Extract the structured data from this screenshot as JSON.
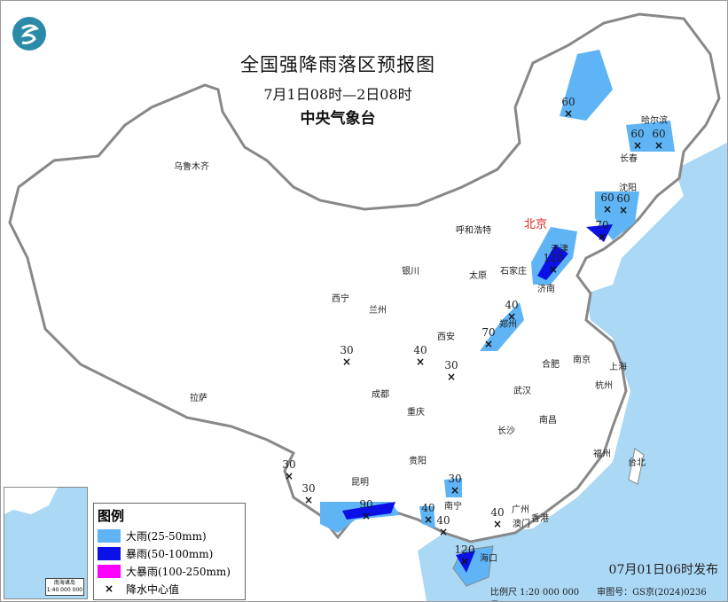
{
  "header": {
    "title": "全国强降雨落区预报图",
    "period": "7月1日08时—2日08时",
    "issuer": "中央气象台",
    "logo_icon": "cma-logo-icon"
  },
  "colors": {
    "heavy_rain": "#5fb4f5",
    "rainstorm": "#0a10e6",
    "heavy_rainstorm": "#ff00ff",
    "sea": "#aad8f5"
  },
  "legend": {
    "title": "图例",
    "items": [
      {
        "label": "大雨(25-50mm)",
        "color": "#5fb4f5"
      },
      {
        "label": "暴雨(50-100mm)",
        "color": "#0a10e6"
      },
      {
        "label": "大暴雨(100-250mm)",
        "color": "#ff00ff"
      },
      {
        "label": "降水中心值",
        "symbol": "×"
      }
    ]
  },
  "cities": [
    "乌鲁木齐",
    "哈尔滨",
    "长春",
    "沈阳",
    "北京",
    "天津",
    "呼和浩特",
    "石家庄",
    "太原",
    "济南",
    "银川",
    "西宁",
    "兰州",
    "郑州",
    "西安",
    "合肥",
    "南京",
    "上海",
    "杭州",
    "武汉",
    "成都",
    "重庆",
    "拉萨",
    "南昌",
    "长沙",
    "贵阳",
    "福州",
    "台北",
    "昆明",
    "南宁",
    "广州",
    "澳门",
    "香港",
    "海口"
  ],
  "rain_centers": [
    60,
    60,
    60,
    60,
    60,
    70,
    120,
    40,
    70,
    30,
    40,
    30,
    30,
    30,
    90,
    30,
    40,
    40,
    40,
    120
  ],
  "inset": {
    "label": "南海诸岛",
    "scale": "1:40 000 000"
  },
  "issue_time": "07月01日06时发布",
  "scale": "比例尺 1:20 000 000",
  "approval": "审图号：GS京(2024)0236号"
}
